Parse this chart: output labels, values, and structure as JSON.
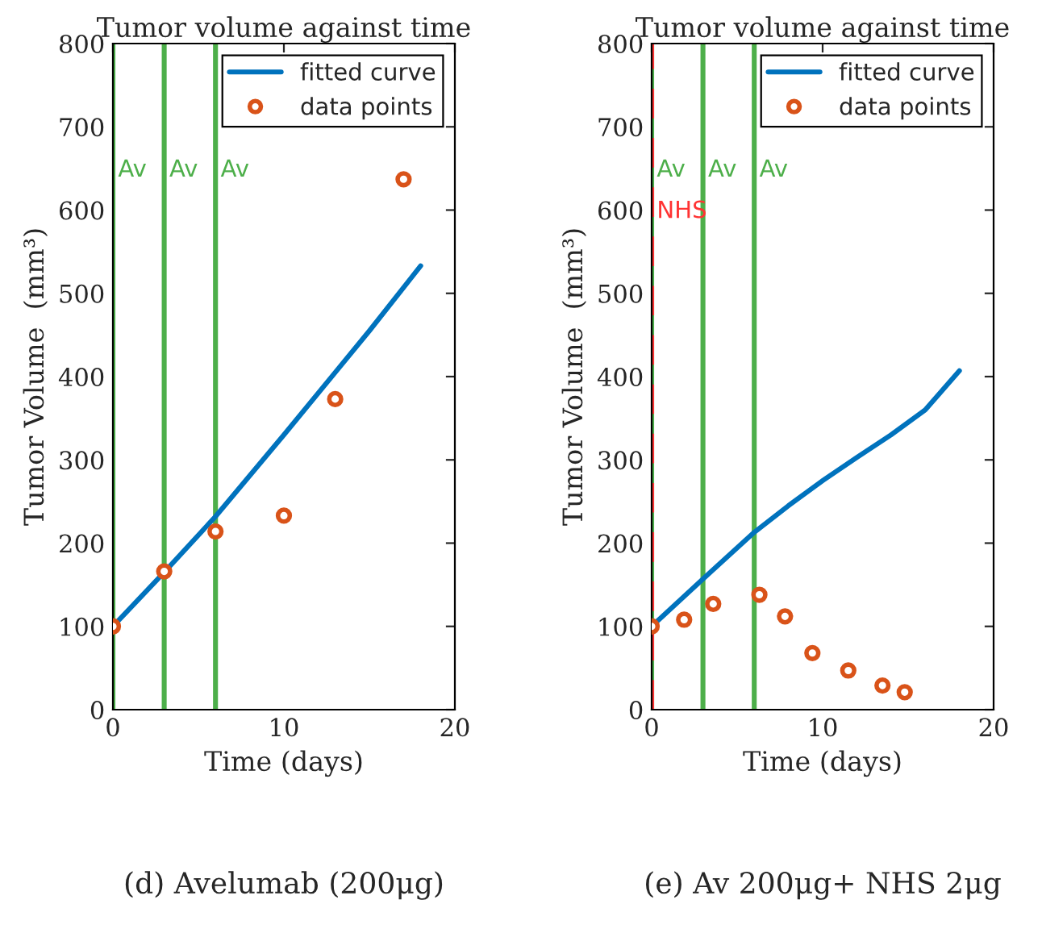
{
  "chart_data": [
    {
      "type": "line",
      "title": "Tumor volume against time",
      "xlabel": "Time (days)",
      "ylabel": "Tumor Volume  (mm³)",
      "xlim": [
        0,
        20
      ],
      "xticks": [
        0,
        10,
        20
      ],
      "ylim": [
        0,
        800
      ],
      "yticks": [
        0,
        100,
        200,
        300,
        400,
        500,
        600,
        700,
        800
      ],
      "grid": false,
      "legend": "top right",
      "series": [
        {
          "name": "fitted curve",
          "color": "#0072bd",
          "marker": "none",
          "line_style": "solid",
          "x": [
            0,
            3,
            6,
            10,
            13,
            15,
            18
          ],
          "values": [
            100,
            165,
            232,
            330,
            405,
            455,
            533
          ]
        },
        {
          "name": "data points",
          "type": "scatter",
          "color": "#d95319",
          "marker": "circle",
          "x": [
            0,
            3,
            6,
            10,
            13,
            17
          ],
          "values": [
            100,
            166,
            214,
            233,
            373,
            637
          ]
        }
      ],
      "ref_lines": [
        {
          "axis": "x",
          "value": 0,
          "label": "Av",
          "color": "#4daf4a",
          "line_style": "solid"
        },
        {
          "axis": "x",
          "value": 3,
          "label": "Av",
          "color": "#4daf4a",
          "line_style": "solid"
        },
        {
          "axis": "x",
          "value": 6,
          "label": "Av",
          "color": "#4daf4a",
          "line_style": "solid"
        }
      ],
      "annotations": [
        "(d) Avelumab (200μg)"
      ]
    },
    {
      "type": "line",
      "title": "Tumor volume against time",
      "xlabel": "Time (days)",
      "ylabel": "Tumor Volume  (mm³)",
      "xlim": [
        0,
        20
      ],
      "xticks": [
        0,
        10,
        20
      ],
      "ylim": [
        0,
        800
      ],
      "yticks": [
        0,
        100,
        200,
        300,
        400,
        500,
        600,
        700,
        800
      ],
      "grid": false,
      "legend": "top right",
      "series": [
        {
          "name": "fitted curve",
          "color": "#0072bd",
          "marker": "none",
          "line_style": "solid",
          "x": [
            0,
            3,
            6,
            8,
            10,
            12,
            14,
            16,
            18
          ],
          "values": [
            100,
            157,
            213,
            245,
            275,
            303,
            330,
            360,
            407
          ]
        },
        {
          "name": "data points",
          "type": "scatter",
          "color": "#d95319",
          "marker": "circle",
          "x": [
            0,
            1.9,
            3.6,
            6.3,
            7.8,
            9.4,
            11.5,
            13.5,
            14.8
          ],
          "values": [
            100,
            108,
            127,
            138,
            112,
            68,
            47,
            29,
            21
          ]
        }
      ],
      "ref_lines": [
        {
          "axis": "x",
          "value": 0,
          "label": "Av",
          "color": "#4daf4a",
          "line_style": "solid"
        },
        {
          "axis": "x",
          "value": 0,
          "label": "NHS",
          "color": "#ff3333",
          "line_style": "dashed"
        },
        {
          "axis": "x",
          "value": 3,
          "label": "Av",
          "color": "#4daf4a",
          "line_style": "solid"
        },
        {
          "axis": "x",
          "value": 6,
          "label": "Av",
          "color": "#4daf4a",
          "line_style": "solid"
        }
      ],
      "annotations": [
        "(e) Av 200μg+ NHS 2μg"
      ]
    }
  ]
}
